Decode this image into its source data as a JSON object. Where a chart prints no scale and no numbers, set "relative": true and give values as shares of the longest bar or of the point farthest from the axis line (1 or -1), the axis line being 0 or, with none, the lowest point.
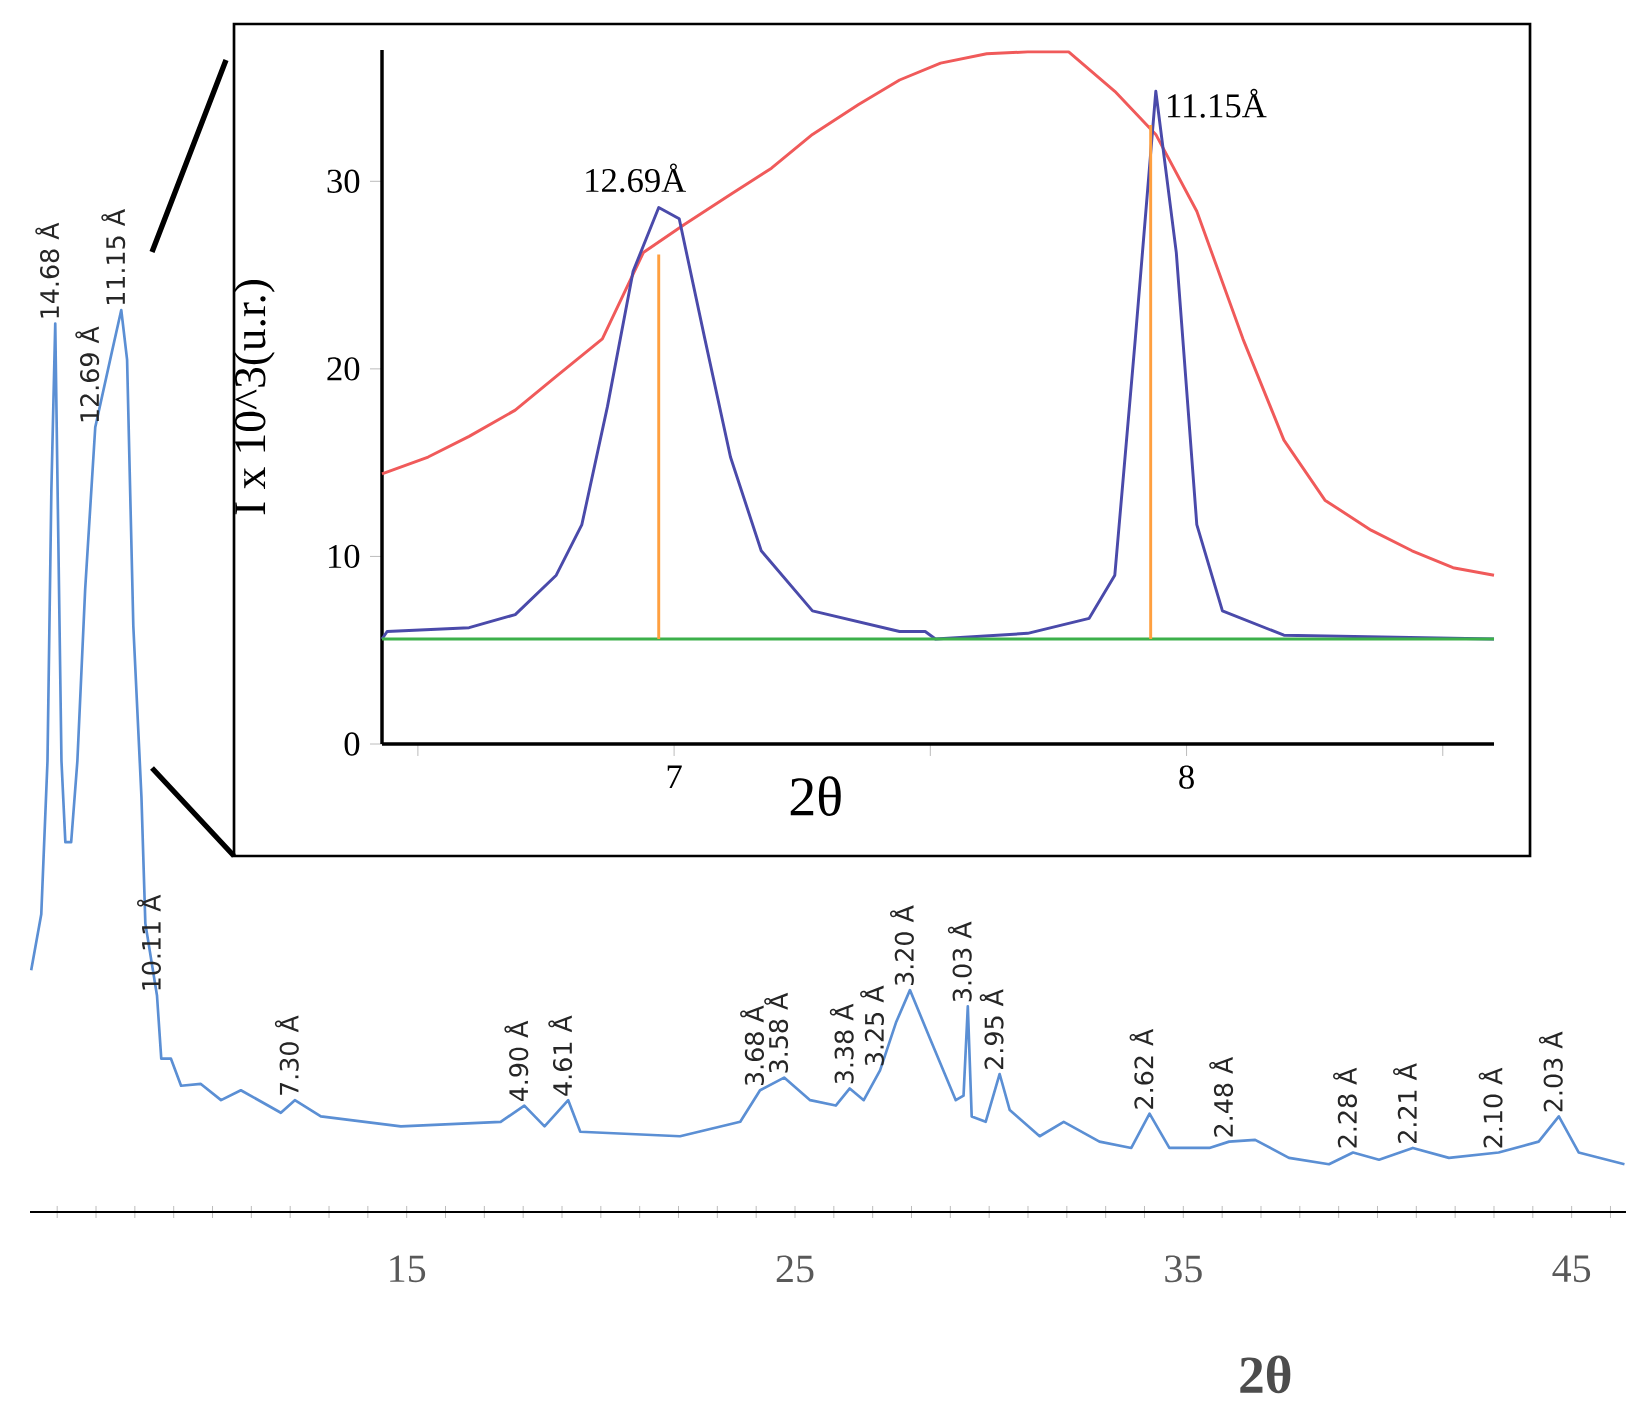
{
  "chart_data": [
    {
      "type": "line",
      "xlabel": "2θ",
      "relative": true,
      "xlim": [
        5.3,
        46.4
      ],
      "xticks": [
        {
          "value": 6,
          "label": null
        },
        {
          "value": 7,
          "label": null
        },
        {
          "value": 8,
          "label": null
        },
        {
          "value": 9,
          "label": null
        },
        {
          "value": 10,
          "label": null
        },
        {
          "value": 11,
          "label": null
        },
        {
          "value": 12,
          "label": null
        },
        {
          "value": 13,
          "label": null
        },
        {
          "value": 14,
          "label": null
        },
        15,
        {
          "value": 16,
          "label": null
        },
        {
          "value": 17,
          "label": null
        },
        {
          "value": 18,
          "label": null
        },
        {
          "value": 19,
          "label": null
        },
        {
          "value": 20,
          "label": null
        },
        {
          "value": 21,
          "label": null
        },
        {
          "value": 22,
          "label": null
        },
        {
          "value": 23,
          "label": null
        },
        {
          "value": 24,
          "label": null
        },
        25,
        {
          "value": 26,
          "label": null
        },
        {
          "value": 27,
          "label": null
        },
        {
          "value": 28,
          "label": null
        },
        {
          "value": 29,
          "label": null
        },
        {
          "value": 30,
          "label": null
        },
        {
          "value": 31,
          "label": null
        },
        {
          "value": 32,
          "label": null
        },
        {
          "value": 33,
          "label": null
        },
        {
          "value": 34,
          "label": null
        },
        35,
        {
          "value": 36,
          "label": null
        },
        {
          "value": 37,
          "label": null
        },
        {
          "value": 38,
          "label": null
        },
        {
          "value": 39,
          "label": null
        },
        {
          "value": 40,
          "label": null
        },
        {
          "value": 41,
          "label": null
        },
        {
          "value": 42,
          "label": null
        },
        {
          "value": 43,
          "label": null
        },
        {
          "value": 44,
          "label": null
        },
        45,
        {
          "value": 46,
          "label": null
        }
      ],
      "series": [
        {
          "color": "#5b8fd4",
          "x": [
            5.33,
            5.59,
            5.75,
            5.85,
            5.95,
            6.11,
            6.21,
            6.36,
            6.52,
            6.72,
            6.98,
            7.39,
            7.65,
            7.8,
            7.96,
            8.17,
            8.27,
            8.57,
            8.68,
            8.93,
            9.19,
            9.7,
            10.22,
            10.73,
            11.76,
            12.12,
            12.79,
            14.85,
            17.42,
            18.03,
            18.55,
            19.16,
            19.47,
            22.04,
            23.59,
            24.1,
            24.72,
            25.39,
            26.05,
            26.41,
            26.77,
            27.19,
            27.6,
            27.96,
            28.47,
            29.14,
            29.34,
            29.45,
            29.55,
            29.91,
            30.27,
            30.53,
            31.3,
            31.92,
            32.84,
            33.66,
            34.13,
            34.64,
            35.67,
            36.18,
            36.85,
            37.72,
            38.75,
            39.37,
            40.04,
            40.91,
            41.84,
            43.12,
            44.15,
            44.67,
            45.18,
            46.36
          ],
          "values": [
            0.268,
            0.33,
            0.5,
            0.8,
            0.985,
            0.5,
            0.41,
            0.41,
            0.5,
            0.69,
            0.87,
            0.95,
            1.0,
            0.945,
            0.65,
            0.46,
            0.32,
            0.24,
            0.17,
            0.17,
            0.14,
            0.142,
            0.124,
            0.135,
            0.11,
            0.124,
            0.106,
            0.095,
            0.1,
            0.118,
            0.095,
            0.124,
            0.089,
            0.084,
            0.1,
            0.135,
            0.149,
            0.124,
            0.118,
            0.137,
            0.124,
            0.157,
            0.21,
            0.246,
            0.193,
            0.124,
            0.129,
            0.228,
            0.106,
            0.1,
            0.153,
            0.113,
            0.084,
            0.1,
            0.078,
            0.071,
            0.109,
            0.071,
            0.071,
            0.078,
            0.08,
            0.06,
            0.053,
            0.066,
            0.058,
            0.071,
            0.06,
            0.066,
            0.078,
            0.106,
            0.066,
            0.053
          ]
        }
      ],
      "annotations": [
        {
          "text": "14.68 Å",
          "x": 5.95,
          "y": 0.985
        },
        {
          "text": "12.69 Å",
          "x": 6.98,
          "y": 0.87
        },
        {
          "text": "11.15 Å",
          "x": 7.65,
          "y": 1.0
        },
        {
          "text": "10.11 Å",
          "x": 8.57,
          "y": 0.24
        },
        {
          "text": "7.30 Å",
          "x": 12.12,
          "y": 0.124
        },
        {
          "text": "4.90 Å",
          "x": 18.03,
          "y": 0.118
        },
        {
          "text": "4.61 Å",
          "x": 19.16,
          "y": 0.124
        },
        {
          "text": "3.68 Å",
          "x": 24.1,
          "y": 0.135
        },
        {
          "text": "3.58 Å",
          "x": 24.72,
          "y": 0.149
        },
        {
          "text": "3.38 Å",
          "x": 26.41,
          "y": 0.137
        },
        {
          "text": "3.25 Å",
          "x": 27.19,
          "y": 0.157
        },
        {
          "text": "3.20 Å",
          "x": 27.96,
          "y": 0.246
        },
        {
          "text": "3.03 Å",
          "x": 29.45,
          "y": 0.228
        },
        {
          "text": "2.95 Å",
          "x": 30.27,
          "y": 0.153
        },
        {
          "text": "2.62 Å",
          "x": 34.13,
          "y": 0.109
        },
        {
          "text": "2.48 Å",
          "x": 36.18,
          "y": 0.078
        },
        {
          "text": "2.28 Å",
          "x": 39.37,
          "y": 0.066
        },
        {
          "text": "2.21 Å",
          "x": 40.91,
          "y": 0.071
        },
        {
          "text": "2.10 Å",
          "x": 43.12,
          "y": 0.066
        },
        {
          "text": "2.03 Å",
          "x": 44.67,
          "y": 0.106
        }
      ]
    },
    {
      "type": "line",
      "xlabel": "2θ",
      "ylabel": "I x 10^3(u.r.)",
      "xlim": [
        6.43,
        8.6
      ],
      "ylim": [
        0,
        37
      ],
      "xticks": [
        {
          "value": 6.5,
          "label": null
        },
        7,
        {
          "value": 7.5,
          "label": null
        },
        8,
        {
          "value": 8.5,
          "label": null
        }
      ],
      "yticks": [
        0,
        10,
        20,
        30
      ],
      "series": [
        {
          "color": "#f05a5a",
          "x": [
            6.43,
            6.52,
            6.6,
            6.69,
            6.77,
            6.86,
            6.94,
            7.02,
            7.11,
            7.19,
            7.27,
            7.36,
            7.44,
            7.52,
            7.61,
            7.69,
            7.77,
            7.86,
            7.94,
            8.02,
            8.11,
            8.19,
            8.27,
            8.36,
            8.44,
            8.52,
            8.6
          ],
          "values": [
            14.4,
            15.3,
            16.4,
            17.8,
            19.6,
            21.6,
            26.2,
            27.7,
            29.3,
            30.7,
            32.5,
            34.1,
            35.4,
            36.3,
            36.8,
            36.9,
            36.9,
            34.8,
            32.5,
            28.4,
            21.6,
            16.2,
            13.0,
            11.4,
            10.3,
            9.4,
            9.0
          ]
        },
        {
          "color": "#4a4aaa",
          "x": [
            6.43,
            6.44,
            6.6,
            6.69,
            6.77,
            6.82,
            6.87,
            6.92,
            6.97,
            7.01,
            7.06,
            7.11,
            7.17,
            7.27,
            7.44,
            7.49,
            7.51,
            7.69,
            7.81,
            7.86,
            7.9,
            7.94,
            7.98,
            8.02,
            8.07,
            8.19,
            8.6
          ],
          "values": [
            5.6,
            6.0,
            6.2,
            6.9,
            9.0,
            11.7,
            18.0,
            25.2,
            28.6,
            28.0,
            21.6,
            15.3,
            10.3,
            7.1,
            6.0,
            6.0,
            5.6,
            5.9,
            6.7,
            9.0,
            21.6,
            34.8,
            26.2,
            11.7,
            7.1,
            5.8,
            5.6
          ]
        },
        {
          "color": "#3cb04a",
          "x": [
            6.43,
            8.6
          ],
          "values": [
            5.6,
            5.6
          ]
        },
        {
          "color": "#ffa040",
          "x": [
            6.97,
            6.97
          ],
          "values": [
            5.6,
            26.1
          ]
        },
        {
          "color": "#ffa040",
          "x": [
            7.93,
            7.93
          ],
          "values": [
            5.6,
            33.0
          ]
        }
      ],
      "annotations": [
        {
          "text": "12.69Å",
          "x": 6.97,
          "y": 28.6
        },
        {
          "text": "11.15Å",
          "x": 7.94,
          "y": 34.8
        }
      ]
    }
  ]
}
